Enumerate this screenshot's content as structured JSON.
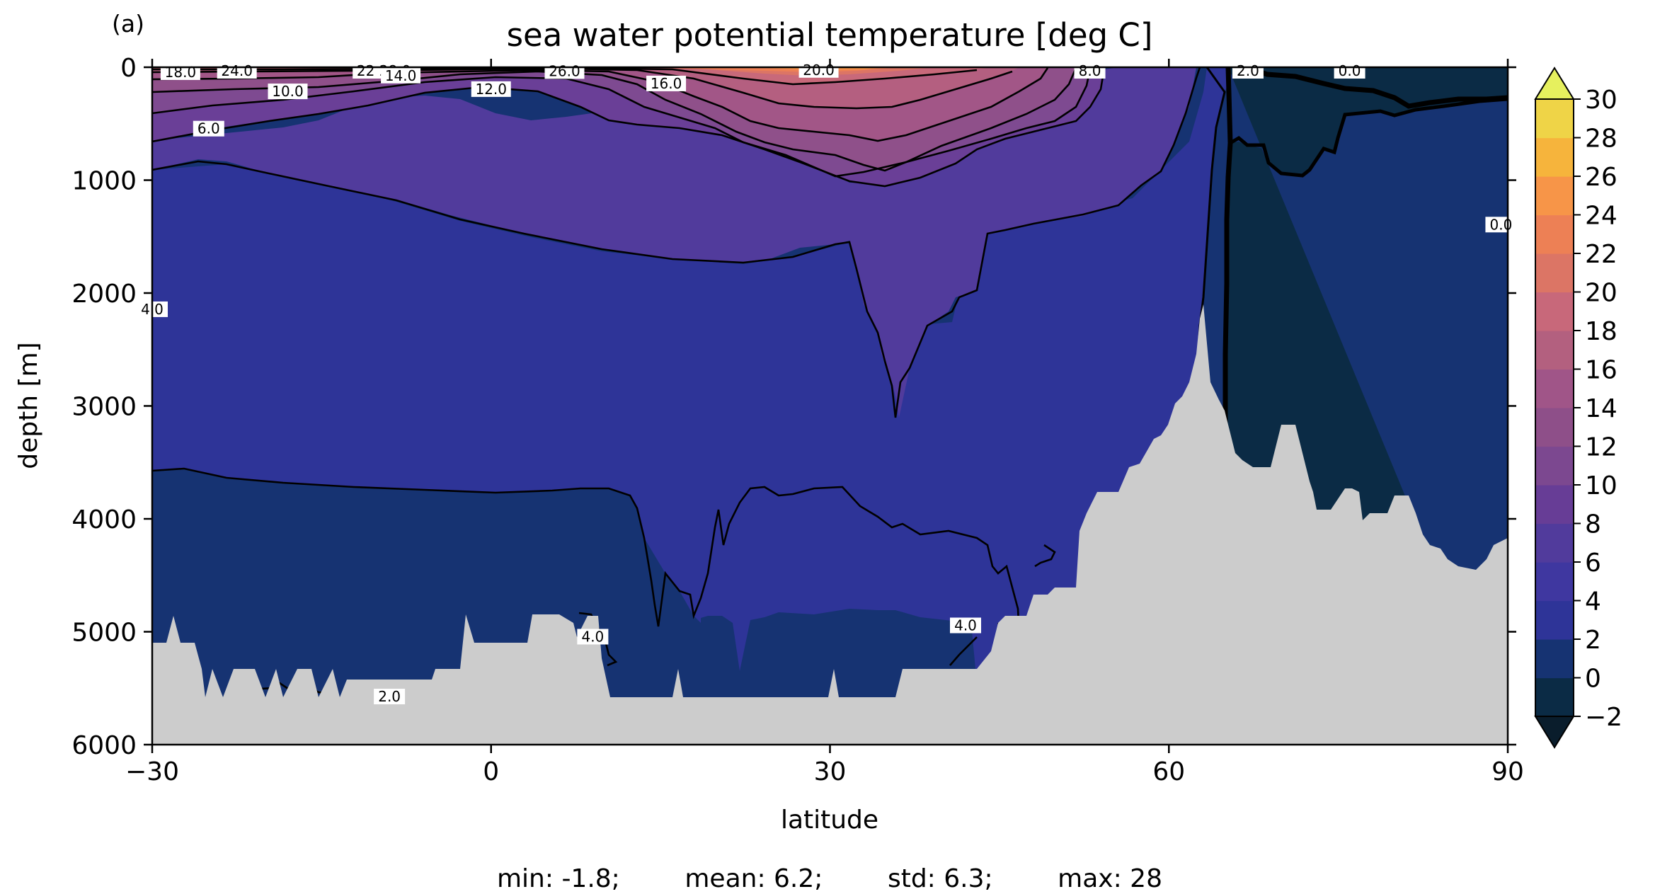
{
  "panel_label": "(a)",
  "stats_text": "min: -1.8;        mean: 6.2;        std: 6.3;        max: 28",
  "chart_data": {
    "type": "heatmap",
    "subtype": "filled-contour depth section",
    "title": "sea water potential temperature [deg C]",
    "xlabel": "latitude",
    "ylabel": "depth [m]",
    "xlim": [
      -30,
      90
    ],
    "ylim": [
      6000,
      0
    ],
    "y_inverted": true,
    "x_ticks": [
      -30,
      0,
      30,
      60,
      90
    ],
    "x_tick_labels": [
      "−30",
      "0",
      "30",
      "60",
      "90"
    ],
    "y_ticks": [
      0,
      1000,
      2000,
      3000,
      4000,
      5000,
      6000
    ],
    "y_tick_labels": [
      "0",
      "1000",
      "2000",
      "3000",
      "4000",
      "5000",
      "6000"
    ],
    "colorbar": {
      "levels": [
        -2,
        0,
        2,
        4,
        6,
        8,
        10,
        12,
        14,
        16,
        18,
        20,
        22,
        24,
        26,
        28,
        30
      ],
      "tick_labels": [
        "−2",
        "0",
        "2",
        "4",
        "6",
        "8",
        "10",
        "12",
        "14",
        "16",
        "18",
        "20",
        "22",
        "24",
        "26",
        "28",
        "30"
      ],
      "extend": "both",
      "colors": [
        "#0b2b45",
        "#163372",
        "#2e3498",
        "#3f37a0",
        "#513b9c",
        "#673d96",
        "#7c4890",
        "#8e4f89",
        "#a05588",
        "#b3607f",
        "#c8687a",
        "#dc7565",
        "#ed8055",
        "#f79548",
        "#f6b43c",
        "#efd447",
        "#ecee5b"
      ],
      "under_color": "#0a1d2c",
      "over_color": "#e6f05e"
    },
    "contour_labels": [
      {
        "text": "18.0",
        "lat": -27.5,
        "depth": 50
      },
      {
        "text": "24.0",
        "lat": -22.5,
        "depth": 0
      },
      {
        "text": "22.0",
        "lat": -10.5,
        "depth": 0
      },
      {
        "text": "28.0",
        "lat": -8.5,
        "depth": 0
      },
      {
        "text": "14.0",
        "lat": -8,
        "depth": 80
      },
      {
        "text": "26.0",
        "lat": 6.5,
        "depth": 40
      },
      {
        "text": "16.0",
        "lat": 15.5,
        "depth": 150
      },
      {
        "text": "20.0",
        "lat": 29,
        "depth": 30
      },
      {
        "text": "10.0",
        "lat": -18,
        "depth": 220
      },
      {
        "text": "12.0",
        "lat": 0,
        "depth": 200
      },
      {
        "text": "6.0",
        "lat": -25,
        "depth": 550
      },
      {
        "text": "8.0",
        "lat": 53,
        "depth": 0
      },
      {
        "text": "2.0",
        "lat": 67,
        "depth": 0
      },
      {
        "text": "0.0",
        "lat": 76,
        "depth": 0
      },
      {
        "text": "0.0",
        "lat": 89.4,
        "depth": 1400
      },
      {
        "text": "4.0",
        "lat": -30,
        "depth": 2150
      },
      {
        "text": "4.0",
        "lat": 9,
        "depth": 5050
      },
      {
        "text": "4.0",
        "lat": 42,
        "depth": 4950
      },
      {
        "text": "2.0",
        "lat": -9,
        "depth": 5580
      }
    ],
    "summary": {
      "min": -1.8,
      "mean": 6.2,
      "std": 6.3,
      "max": 28
    }
  }
}
